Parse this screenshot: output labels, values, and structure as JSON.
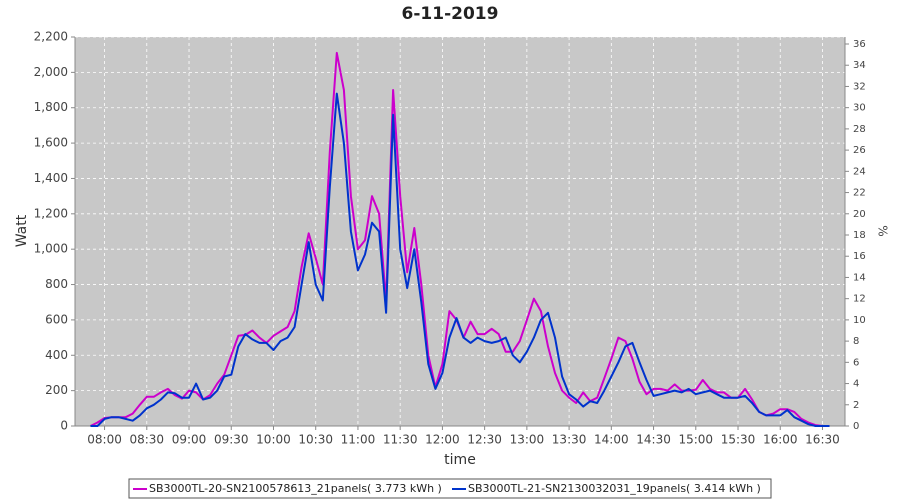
{
  "chart_data": {
    "type": "line",
    "title": "6-11-2019",
    "xlabel": "time",
    "ylabel": "Watt",
    "y2label": "%",
    "x": [
      "07:50",
      "07:55",
      "08:00",
      "08:05",
      "08:10",
      "08:15",
      "08:20",
      "08:25",
      "08:30",
      "08:35",
      "08:40",
      "08:45",
      "08:50",
      "08:55",
      "09:00",
      "09:05",
      "09:10",
      "09:15",
      "09:20",
      "09:25",
      "09:30",
      "09:35",
      "09:40",
      "09:45",
      "09:50",
      "09:55",
      "10:00",
      "10:05",
      "10:10",
      "10:15",
      "10:20",
      "10:25",
      "10:30",
      "10:35",
      "10:40",
      "10:45",
      "10:50",
      "10:55",
      "11:00",
      "11:05",
      "11:10",
      "11:15",
      "11:20",
      "11:25",
      "11:30",
      "11:35",
      "11:40",
      "11:45",
      "11:50",
      "11:55",
      "12:00",
      "12:05",
      "12:10",
      "12:15",
      "12:20",
      "12:25",
      "12:30",
      "12:35",
      "12:40",
      "12:45",
      "12:50",
      "12:55",
      "13:00",
      "13:05",
      "13:10",
      "13:15",
      "13:20",
      "13:25",
      "13:30",
      "13:35",
      "13:40",
      "13:45",
      "13:50",
      "13:55",
      "14:00",
      "14:05",
      "14:10",
      "14:15",
      "14:20",
      "14:25",
      "14:30",
      "14:35",
      "14:40",
      "14:45",
      "14:50",
      "14:55",
      "15:00",
      "15:05",
      "15:10",
      "15:15",
      "15:20",
      "15:25",
      "15:30",
      "15:35",
      "15:40",
      "15:45",
      "15:50",
      "15:55",
      "16:00",
      "16:05",
      "16:10",
      "16:15",
      "16:20",
      "16:25",
      "16:30",
      "16:35"
    ],
    "series": [
      {
        "name": "SB3000TL-20-SN2100578613_21panels( 3.773 kWh )",
        "color": "#cc00cc",
        "values": [
          0,
          20,
          45,
          50,
          50,
          50,
          70,
          120,
          165,
          165,
          190,
          210,
          175,
          155,
          200,
          190,
          150,
          175,
          240,
          290,
          400,
          510,
          515,
          540,
          500,
          470,
          510,
          535,
          560,
          650,
          900,
          1090,
          950,
          800,
          1550,
          2110,
          1900,
          1300,
          1000,
          1050,
          1300,
          1200,
          700,
          1900,
          1300,
          870,
          1120,
          800,
          400,
          220,
          350,
          650,
          600,
          500,
          590,
          520,
          520,
          550,
          520,
          420,
          420,
          480,
          600,
          720,
          650,
          450,
          300,
          200,
          160,
          130,
          190,
          140,
          160,
          270,
          380,
          500,
          480,
          380,
          250,
          180,
          210,
          210,
          200,
          235,
          200,
          200,
          205,
          260,
          210,
          190,
          190,
          160,
          160,
          210,
          150,
          80,
          60,
          70,
          95,
          95,
          80,
          40,
          20,
          5,
          0,
          0
        ]
      },
      {
        "name": "SB3000TL-21-SN2130032031_19panels( 3.414 kWh )",
        "color": "#0033cc",
        "values": [
          0,
          0,
          40,
          50,
          50,
          40,
          30,
          60,
          100,
          120,
          150,
          190,
          185,
          160,
          160,
          240,
          150,
          160,
          200,
          280,
          290,
          450,
          520,
          490,
          470,
          470,
          430,
          480,
          500,
          560,
          800,
          1040,
          800,
          710,
          1350,
          1880,
          1600,
          1100,
          880,
          970,
          1150,
          1100,
          640,
          1760,
          1000,
          780,
          1000,
          700,
          350,
          210,
          300,
          500,
          610,
          500,
          470,
          500,
          480,
          470,
          480,
          500,
          400,
          360,
          420,
          500,
          600,
          640,
          500,
          280,
          180,
          150,
          110,
          140,
          130,
          200,
          280,
          360,
          450,
          470,
          360,
          260,
          170,
          180,
          190,
          200,
          190,
          210,
          180,
          190,
          200,
          180,
          160,
          160,
          160,
          170,
          130,
          80,
          60,
          60,
          60,
          90,
          50,
          30,
          10,
          0,
          0,
          0
        ]
      }
    ],
    "xlim": [
      "07:39",
      "16:46"
    ],
    "xticks": [
      "08:00",
      "08:30",
      "09:00",
      "09:30",
      "10:00",
      "10:30",
      "11:00",
      "11:30",
      "12:00",
      "12:30",
      "13:00",
      "13:30",
      "14:00",
      "14:30",
      "15:00",
      "15:30",
      "16:00",
      "16:30"
    ],
    "ylim": [
      0,
      2200
    ],
    "yticks": [
      0,
      200,
      400,
      600,
      800,
      {
        "value": 1000,
        "label": "1,000"
      },
      {
        "value": 1200,
        "label": "1,200"
      },
      {
        "value": 1400,
        "label": "1,400"
      },
      {
        "value": 1600,
        "label": "1,600"
      },
      {
        "value": 1800,
        "label": "1,800"
      },
      {
        "value": 2000,
        "label": "2,000"
      },
      {
        "value": 2200,
        "label": "2,200"
      }
    ],
    "y2lim": [
      0,
      36.66
    ],
    "y2ticks": [
      0,
      2,
      4,
      6,
      8,
      10,
      12,
      14,
      16,
      18,
      20,
      22,
      24,
      26,
      28,
      30,
      32,
      34,
      36
    ],
    "grid": true,
    "legend": "bottom"
  }
}
